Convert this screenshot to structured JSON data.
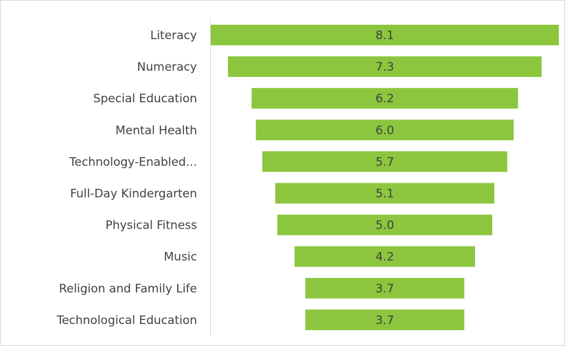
{
  "chart_data": {
    "type": "funnel",
    "categories": [
      "Literacy",
      "Numeracy",
      "Special Education",
      "Mental Health",
      "Technology-Enabled...",
      "Full-Day Kindergarten",
      "Physical Fitness",
      "Music",
      "Religion and Family Life",
      "Technological Education"
    ],
    "values": [
      8.1,
      7.3,
      6.2,
      6.0,
      5.7,
      5.1,
      5.0,
      4.2,
      3.7,
      3.7
    ],
    "value_labels": [
      "8.1",
      "7.3",
      "6.2",
      "6.0",
      "5.7",
      "5.1",
      "5.0",
      "4.2",
      "3.7",
      "3.7"
    ],
    "color": "#8cc63e"
  }
}
